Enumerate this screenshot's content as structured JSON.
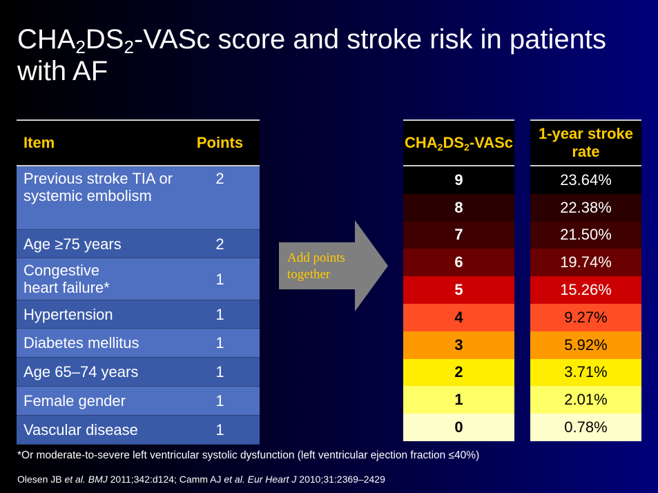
{
  "title": {
    "part1": "CHA",
    "sub1": "2",
    "part2": "DS",
    "sub2": "2",
    "part3": "-VASc score and stroke risk in patients with AF"
  },
  "items_table": {
    "headers": {
      "item": "Item",
      "points": "Points"
    },
    "rows": [
      {
        "item": "Previous stroke TIA or systemic embolism",
        "points": "2"
      },
      {
        "item": "Age ≥75 years",
        "points": "2"
      },
      {
        "item": "Congestive heart failure*",
        "points": "1"
      },
      {
        "item": "Hypertension",
        "points": "1"
      },
      {
        "item": "Diabetes mellitus",
        "points": "1"
      },
      {
        "item": "Age 65–74 years",
        "points": "1"
      },
      {
        "item": "Female gender",
        "points": "1"
      },
      {
        "item": "Vascular disease",
        "points": "1"
      }
    ]
  },
  "arrow": {
    "label": "Add points together",
    "color": "#7f7f7f"
  },
  "score_column": {
    "header": {
      "part1": "CHA",
      "sub1": "2",
      "part2": "DS",
      "sub2": "2",
      "part3": "-VASc"
    }
  },
  "rate_column": {
    "header": "1-year stroke rate"
  },
  "risk_rows": [
    {
      "score": "9",
      "rate": "23.64%",
      "bg": "#000000",
      "fg": "#ffffff"
    },
    {
      "score": "8",
      "rate": "22.38%",
      "bg": "#2a0000",
      "fg": "#ffffff"
    },
    {
      "score": "7",
      "rate": "21.50%",
      "bg": "#3f0000",
      "fg": "#ffffff"
    },
    {
      "score": "6",
      "rate": "19.74%",
      "bg": "#6a0000",
      "fg": "#ffffff"
    },
    {
      "score": "5",
      "rate": "15.26%",
      "bg": "#cc0000",
      "fg": "#ffffff"
    },
    {
      "score": "4",
      "rate": "9.27%",
      "bg": "#ff4e26",
      "fg": "#000000"
    },
    {
      "score": "3",
      "rate": "5.92%",
      "bg": "#ff9900",
      "fg": "#000000"
    },
    {
      "score": "2",
      "rate": "3.71%",
      "bg": "#ffee00",
      "fg": "#000000"
    },
    {
      "score": "1",
      "rate": "2.01%",
      "bg": "#ffff66",
      "fg": "#000000"
    },
    {
      "score": "0",
      "rate": "0.78%",
      "bg": "#ffffcc",
      "fg": "#000000"
    }
  ],
  "footnote": "*Or moderate-to-severe left ventricular systolic dysfunction (left ventricular ejection fraction ≤40%)",
  "references": {
    "r1a": "Olesen JB ",
    "r1b": "et al.",
    "r1c": " BMJ",
    "r1d": " 2011;342:d124; Camm AJ ",
    "r1e": "et al.",
    "r1f": " Eur Heart J",
    "r1g": " 2010;31:2369–2429"
  }
}
